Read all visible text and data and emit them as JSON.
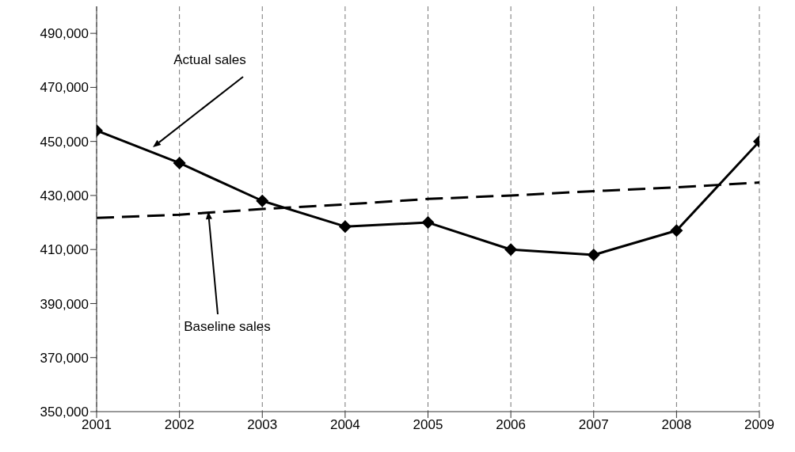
{
  "chart_data": {
    "type": "line",
    "x": [
      2001,
      2002,
      2003,
      2004,
      2005,
      2006,
      2007,
      2008,
      2009
    ],
    "series": [
      {
        "color": "#000000",
        "values": [
          454000,
          442000,
          428000,
          418500,
          420000,
          410000,
          408000,
          417000,
          450000
        ]
      },
      {
        "color": "#000000",
        "values": [
          421700,
          422900,
          425000,
          426700,
          428700,
          430000,
          431600,
          433000,
          434800
        ],
        "marker": "none",
        "line_style": "dashed"
      }
    ],
    "xlim": [
      2001,
      2009
    ],
    "xticks": [
      2001,
      2002,
      2003,
      2004,
      2005,
      2006,
      2007,
      2008,
      2009
    ],
    "ylim": [
      350000,
      500000
    ],
    "yticks": [
      {
        "value": 350000,
        "label": "350,000"
      },
      {
        "value": 370000,
        "label": "370,000"
      },
      {
        "value": 390000,
        "label": "390,000"
      },
      {
        "value": 410000,
        "label": "410,000"
      },
      {
        "value": 430000,
        "label": "430,000"
      },
      {
        "value": 450000,
        "label": "450,000"
      },
      {
        "value": 470000,
        "label": "470,000"
      },
      {
        "value": 490000,
        "label": "490,000"
      }
    ],
    "grid": "x",
    "legend": false,
    "marker": "diamond",
    "line_style": "solid",
    "annotations": [
      "Actual sales",
      "Baseline sales"
    ]
  }
}
